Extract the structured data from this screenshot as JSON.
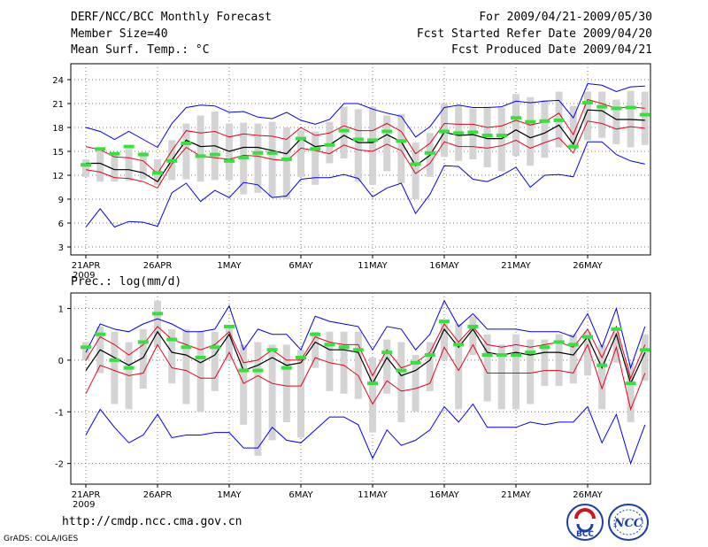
{
  "header": {
    "title": "DERF/NCC/BCC Monthly Forecast",
    "members": "Member Size=40",
    "variable": "Mean Surf. Temp.: °C",
    "period": "For 2009/04/21-2009/05/30",
    "refer_date": "Fcst Started Refer Date 2009/04/20",
    "produced_date": "Fcst Produced Date 2009/04/21"
  },
  "footer": {
    "url": "http://cmdp.ncc.cma.gov.cn",
    "credit": "GrADS: COLA/IGES",
    "logo_left_text": "BCC",
    "logo_right_text": "NCC"
  },
  "colors": {
    "bar": "#d4d4d4",
    "mean": "#000000",
    "stddev": "#e8001c",
    "extreme": "#0000ee",
    "member_mean": "#33e33a",
    "grid": "#777777"
  },
  "chart_data": [
    {
      "type": "line",
      "title": "Mean Surf. Temp.: °C",
      "x": [
        "21APR",
        "22APR",
        "23APR",
        "24APR",
        "25APR",
        "26APR",
        "27APR",
        "28APR",
        "29APR",
        "30APR",
        "1MAY",
        "2MAY",
        "3MAY",
        "4MAY",
        "5MAY",
        "6MAY",
        "7MAY",
        "8MAY",
        "9MAY",
        "10MAY",
        "11MAY",
        "12MAY",
        "13MAY",
        "14MAY",
        "15MAY",
        "16MAY",
        "17MAY",
        "18MAY",
        "19MAY",
        "20MAY",
        "21MAY",
        "22MAY",
        "23MAY",
        "24MAY",
        "25MAY",
        "26MAY",
        "27MAY",
        "28MAY",
        "29MAY",
        "30MAY"
      ],
      "x_tick_labels": [
        "21APR",
        "26APR",
        "1MAY",
        "6MAY",
        "11MAY",
        "16MAY",
        "21MAY",
        "26MAY"
      ],
      "x_year_label": "2009",
      "ylim": [
        2,
        26
      ],
      "yticks": [
        3,
        6,
        9,
        12,
        15,
        18,
        21,
        24
      ],
      "grid": true,
      "series": [
        {
          "name": "max",
          "values": [
            18.0,
            17.5,
            16.5,
            17.5,
            16.5,
            15.5,
            18.5,
            20.5,
            20.8,
            20.7,
            19.9,
            20.0,
            19.3,
            19.1,
            19.9,
            18.9,
            18.4,
            19.0,
            21.0,
            21.0,
            20.3,
            19.8,
            19.4,
            16.8,
            18.1,
            20.5,
            20.8,
            20.5,
            20.5,
            20.6,
            21.3,
            21.1,
            21.3,
            21.4,
            19.2,
            23.5,
            23.3,
            22.5,
            23.1,
            23.2
          ]
        },
        {
          "name": "mean_plus_sd",
          "values": [
            15.6,
            15.2,
            14.3,
            14.2,
            13.8,
            12.2,
            15.1,
            17.6,
            17.3,
            17.5,
            16.8,
            17.2,
            17.0,
            16.9,
            16.5,
            18.0,
            17.0,
            17.3,
            18.2,
            17.6,
            17.6,
            18.5,
            17.5,
            14.7,
            16.0,
            18.5,
            18.4,
            18.4,
            18.0,
            18.2,
            18.9,
            18.3,
            18.7,
            19.8,
            17.1,
            21.5,
            21.0,
            20.4,
            20.6,
            20.4
          ]
        },
        {
          "name": "ensemble_mean",
          "values": [
            13.5,
            13.5,
            12.7,
            12.7,
            12.3,
            11.2,
            13.9,
            16.4,
            15.6,
            15.7,
            15.0,
            15.5,
            15.5,
            15.1,
            14.7,
            16.6,
            15.6,
            15.8,
            17.0,
            16.1,
            16.1,
            17.1,
            16.2,
            13.2,
            14.5,
            17.4,
            17.0,
            17.1,
            16.6,
            16.6,
            17.7,
            16.7,
            17.3,
            18.3,
            15.9,
            20.2,
            20.1,
            19.0,
            19.0,
            18.9
          ]
        },
        {
          "name": "mean_minus_sd",
          "values": [
            12.7,
            12.4,
            11.7,
            11.6,
            11.2,
            10.4,
            13.4,
            15.5,
            14.4,
            14.2,
            14.0,
            14.5,
            14.4,
            14.0,
            13.8,
            15.4,
            15.1,
            14.7,
            15.8,
            15.2,
            15.0,
            15.9,
            15.1,
            12.2,
            13.5,
            16.2,
            15.6,
            15.6,
            15.4,
            15.7,
            16.4,
            15.4,
            16.1,
            16.7,
            14.8,
            18.8,
            18.5,
            17.8,
            18.1,
            17.9
          ]
        },
        {
          "name": "min",
          "values": [
            5.5,
            7.8,
            5.5,
            6.2,
            6.1,
            5.6,
            9.8,
            11.0,
            8.7,
            10.1,
            9.2,
            11.1,
            10.8,
            9.2,
            9.4,
            11.5,
            11.7,
            11.7,
            12.1,
            11.6,
            9.3,
            10.4,
            11.0,
            7.2,
            9.6,
            13.2,
            13.1,
            11.5,
            11.2,
            12.0,
            13.0,
            10.5,
            12.0,
            12.1,
            11.8,
            16.2,
            16.2,
            14.6,
            13.8,
            13.4
          ]
        }
      ],
      "box_top": [
        14.0,
        15.5,
        14.7,
        15.3,
        14.9,
        14.0,
        16.4,
        18.5,
        19.5,
        20.0,
        18.5,
        18.6,
        18.5,
        18.7,
        18.0,
        17.7,
        17.5,
        18.7,
        20.6,
        20.3,
        20.6,
        19.5,
        19.7,
        16.1,
        17.3,
        21.0,
        20.8,
        20.4,
        20.6,
        20.5,
        22.2,
        21.8,
        21.4,
        22.5,
        20.7,
        22.5,
        22.5,
        21.5,
        22.6,
        22.5
      ],
      "box_bottom": [
        11.8,
        11.2,
        11.2,
        11.3,
        11.5,
        10.8,
        11.4,
        11.5,
        11.2,
        11.4,
        11.4,
        9.6,
        9.8,
        9.2,
        9.0,
        11.8,
        10.8,
        13.5,
        14.1,
        11.2,
        10.8,
        12.5,
        11.0,
        9.0,
        11.8,
        14.3,
        13.8,
        14.0,
        13.0,
        12.5,
        14.4,
        13.2,
        14.2,
        15.5,
        15.2,
        16.4,
        16.7,
        15.9,
        15.5,
        15.8
      ],
      "member_mean_marks": [
        13.3,
        15.3,
        14.7,
        15.6,
        14.6,
        12.3,
        13.8,
        16.0,
        14.4,
        14.6,
        13.8,
        14.2,
        14.8,
        14.8,
        14.0,
        16.6,
        15.3,
        15.8,
        17.6,
        16.5,
        16.4,
        17.5,
        16.3,
        13.4,
        14.8,
        17.5,
        17.3,
        17.4,
        17.0,
        17.0,
        19.2,
        18.7,
        18.8,
        18.9,
        15.6,
        21.1,
        20.6,
        20.4,
        20.5,
        19.6
      ]
    },
    {
      "type": "line",
      "title": "Prec.: log(mm/d)",
      "x": [
        "21APR",
        "22APR",
        "23APR",
        "24APR",
        "25APR",
        "26APR",
        "27APR",
        "28APR",
        "29APR",
        "30APR",
        "1MAY",
        "2MAY",
        "3MAY",
        "4MAY",
        "5MAY",
        "6MAY",
        "7MAY",
        "8MAY",
        "9MAY",
        "10MAY",
        "11MAY",
        "12MAY",
        "13MAY",
        "14MAY",
        "15MAY",
        "16MAY",
        "17MAY",
        "18MAY",
        "19MAY",
        "20MAY",
        "21MAY",
        "22MAY",
        "23MAY",
        "24MAY",
        "25MAY",
        "26MAY",
        "27MAY",
        "28MAY",
        "29MAY",
        "30MAY"
      ],
      "x_tick_labels": [
        "21APR",
        "26APR",
        "1MAY",
        "6MAY",
        "11MAY",
        "16MAY",
        "21MAY",
        "26MAY"
      ],
      "x_year_label": "2009",
      "ylim": [
        -2.4,
        1.3
      ],
      "yticks": [
        -2,
        -1,
        0,
        1
      ],
      "grid": true,
      "series": [
        {
          "name": "max",
          "values": [
            0.15,
            0.7,
            0.6,
            0.55,
            0.7,
            0.8,
            0.7,
            0.55,
            0.55,
            0.6,
            1.05,
            0.2,
            0.6,
            0.5,
            0.5,
            0.2,
            0.85,
            0.75,
            0.7,
            0.65,
            0.2,
            0.65,
            0.6,
            0.2,
            0.5,
            1.15,
            0.65,
            0.9,
            0.6,
            0.6,
            0.6,
            0.55,
            0.55,
            0.55,
            0.45,
            0.9,
            0.25,
            1.0,
            -0.15,
            0.65
          ]
        },
        {
          "name": "mean_plus_sd",
          "values": [
            0.0,
            0.45,
            0.3,
            0.1,
            0.3,
            0.65,
            0.4,
            0.3,
            0.2,
            0.3,
            0.55,
            -0.05,
            0.0,
            0.2,
            0.0,
            0.0,
            0.45,
            0.35,
            0.3,
            0.3,
            -0.3,
            0.2,
            -0.15,
            -0.05,
            0.15,
            0.7,
            0.35,
            0.65,
            0.3,
            0.25,
            0.3,
            0.25,
            0.3,
            0.35,
            0.25,
            0.6,
            0.05,
            0.65,
            -0.35,
            0.3
          ]
        },
        {
          "name": "ensemble_mean",
          "values": [
            -0.2,
            0.2,
            0.05,
            -0.1,
            0.05,
            0.55,
            0.15,
            0.1,
            -0.05,
            0.1,
            0.5,
            -0.2,
            -0.1,
            0.05,
            -0.1,
            -0.05,
            0.35,
            0.2,
            0.2,
            0.15,
            -0.45,
            0.05,
            -0.3,
            -0.2,
            0.0,
            0.6,
            0.25,
            0.6,
            0.15,
            0.1,
            0.15,
            0.1,
            0.15,
            0.15,
            0.1,
            0.45,
            -0.15,
            0.5,
            -0.45,
            0.15
          ]
        },
        {
          "name": "mean_minus_sd",
          "values": [
            -0.65,
            -0.1,
            -0.2,
            -0.3,
            -0.25,
            0.3,
            -0.15,
            -0.2,
            -0.35,
            -0.35,
            0.15,
            -0.45,
            -0.3,
            -0.45,
            -0.5,
            -0.5,
            0.05,
            -0.05,
            -0.1,
            -0.3,
            -0.85,
            -0.4,
            -0.6,
            -0.55,
            -0.45,
            0.25,
            -0.2,
            0.3,
            -0.25,
            -0.25,
            -0.25,
            -0.25,
            -0.2,
            -0.2,
            -0.25,
            0.3,
            -0.55,
            0.25,
            -0.95,
            -0.25
          ]
        },
        {
          "name": "min",
          "values": [
            -1.45,
            -0.95,
            -1.3,
            -1.6,
            -1.45,
            -1.05,
            -1.5,
            -1.45,
            -1.45,
            -1.4,
            -1.4,
            -1.7,
            -1.7,
            -1.3,
            -1.55,
            -1.6,
            -1.35,
            -1.1,
            -1.1,
            -1.25,
            -1.9,
            -1.35,
            -1.65,
            -1.55,
            -1.35,
            -0.9,
            -1.2,
            -0.85,
            -1.3,
            -1.3,
            -1.3,
            -1.2,
            -1.25,
            -1.2,
            -1.2,
            -0.9,
            -1.6,
            -1.05,
            -2.0,
            -1.25
          ]
        },
        {
          "name": "member_mean_marks",
          "values": [
            0.25,
            0.5,
            0.0,
            -0.15,
            0.35,
            0.9,
            0.4,
            0.25,
            0.05,
            0.25,
            0.65,
            -0.2,
            -0.2,
            0.2,
            -0.15,
            0.05,
            0.5,
            0.3,
            0.25,
            0.2,
            -0.45,
            0.15,
            -0.2,
            -0.05,
            0.1,
            0.75,
            0.3,
            0.65,
            0.1,
            0.1,
            0.1,
            0.15,
            0.25,
            0.35,
            0.3,
            0.45,
            -0.1,
            0.6,
            -0.45,
            0.2
          ]
        }
      ],
      "box_top": [
        0.35,
        0.65,
        0.55,
        0.35,
        0.6,
        1.15,
        0.6,
        0.6,
        0.55,
        0.55,
        0.6,
        0.3,
        0.35,
        0.3,
        0.3,
        0.2,
        0.55,
        0.55,
        0.55,
        0.55,
        0.05,
        0.4,
        0.35,
        0.1,
        0.35,
        0.75,
        0.7,
        0.85,
        0.5,
        0.3,
        0.5,
        0.4,
        0.4,
        0.5,
        0.5,
        0.55,
        0.3,
        0.55,
        -0.05,
        0.5
      ],
      "box_bottom": [
        0.0,
        -0.25,
        -0.85,
        -0.95,
        -0.55,
        0.25,
        -0.45,
        -0.85,
        -1.0,
        -0.6,
        0.0,
        -1.25,
        -1.85,
        -1.55,
        -1.2,
        -1.5,
        -0.15,
        -0.6,
        -0.65,
        -0.75,
        -1.4,
        -0.65,
        -1.2,
        -1.0,
        -0.6,
        0.0,
        -0.95,
        0.1,
        -0.8,
        -0.95,
        -0.95,
        -0.85,
        -0.5,
        -0.5,
        -0.45,
        -0.3,
        -0.95,
        -0.05,
        -1.2,
        -0.4
      ]
    }
  ]
}
